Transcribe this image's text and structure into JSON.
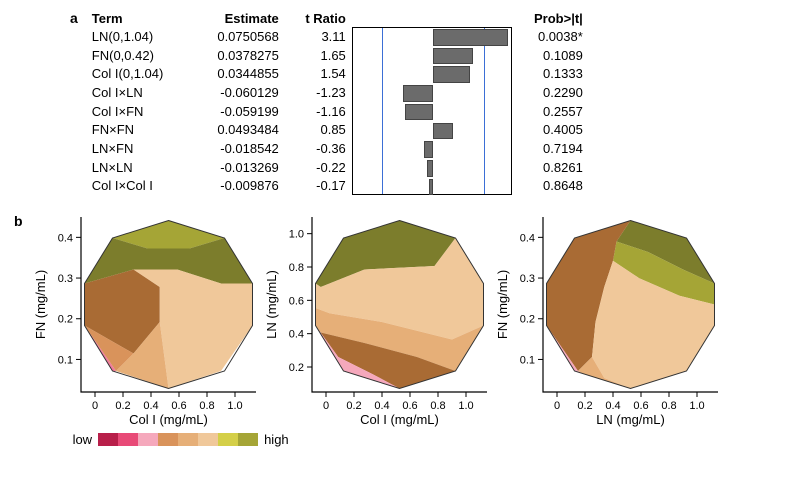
{
  "panelA": {
    "label": "a",
    "headers": {
      "term": "Term",
      "estimate": "Estimate",
      "tratio": "t Ratio",
      "prob": "Prob>|t|"
    },
    "rows": [
      {
        "term": "LN(0,1.04)",
        "estimate": "0.0750568",
        "tratio": "3.11",
        "prob": "0.0038*",
        "tval": 3.11
      },
      {
        "term": "FN(0,0.42)",
        "estimate": "0.0378275",
        "tratio": "1.65",
        "prob": "0.1089",
        "tval": 1.65
      },
      {
        "term": "Col I(0,1.04)",
        "estimate": "0.0344855",
        "tratio": "1.54",
        "prob": "0.1333",
        "tval": 1.54
      },
      {
        "term": "Col I×LN",
        "estimate": "-0.060129",
        "tratio": "-1.23",
        "prob": "0.2290",
        "tval": -1.23
      },
      {
        "term": "Col I×FN",
        "estimate": "-0.059199",
        "tratio": "-1.16",
        "prob": "0.2557",
        "tval": -1.16
      },
      {
        "term": "FN×FN",
        "estimate": "0.0493484",
        "tratio": "0.85",
        "prob": "0.4005",
        "tval": 0.85
      },
      {
        "term": "LN×FN",
        "estimate": "-0.018542",
        "tratio": "-0.36",
        "prob": "0.7194",
        "tval": -0.36
      },
      {
        "term": "LN×LN",
        "estimate": "-0.013269",
        "tratio": "-0.22",
        "prob": "0.8261",
        "tval": -0.22
      },
      {
        "term": "Col I×Col I",
        "estimate": "-0.009876",
        "tratio": "-0.17",
        "prob": "0.8648",
        "tval": -0.17
      }
    ],
    "barchart": {
      "range": 3.3,
      "threshold": 2.1,
      "bar_fill": "#6b6b6b",
      "bar_border": "#444444",
      "threshold_color": "#3b6fd6"
    }
  },
  "panelB": {
    "label": "b",
    "palette": [
      "#b81f4a",
      "#d8265a",
      "#e84a77",
      "#ef7b9b",
      "#f5a8bc",
      "#d9935b",
      "#a96b34",
      "#e6af78",
      "#f0c89a",
      "#d4cf48",
      "#a5a536",
      "#7c7d2c"
    ],
    "plots": [
      {
        "xlabel": "Col I (mg/mL)",
        "ylabel": "FN (mg/mL)",
        "xticks": [
          "0",
          "0.2",
          "0.4",
          "0.6",
          "0.8",
          "1.0"
        ],
        "yticks": [
          "0.1",
          "0.2",
          "0.3",
          "0.4"
        ],
        "xlim": [
          -0.1,
          1.15
        ],
        "ylim": [
          0.02,
          0.45
        ]
      },
      {
        "xlabel": "Col I (mg/mL)",
        "ylabel": "LN (mg/mL)",
        "xticks": [
          "0",
          "0.2",
          "0.4",
          "0.6",
          "0.8",
          "1.0"
        ],
        "yticks": [
          "0.2",
          "0.4",
          "0.6",
          "0.8",
          "1.0"
        ],
        "xlim": [
          -0.1,
          1.15
        ],
        "ylim": [
          0.05,
          1.1
        ]
      },
      {
        "xlabel": "LN (mg/mL)",
        "ylabel": "FN (mg/mL)",
        "xticks": [
          "0",
          "0.2",
          "0.4",
          "0.6",
          "0.8",
          "1.0"
        ],
        "yticks": [
          "0.1",
          "0.2",
          "0.3",
          "0.4"
        ],
        "xlim": [
          -0.1,
          1.15
        ],
        "ylim": [
          0.02,
          0.45
        ]
      }
    ],
    "legend": {
      "low": "low",
      "high": "high",
      "colors": [
        "#b81f4a",
        "#e84a77",
        "#f5a8bc",
        "#d9935b",
        "#e6af78",
        "#f0c89a",
        "#d4cf48",
        "#a5a536"
      ]
    }
  }
}
